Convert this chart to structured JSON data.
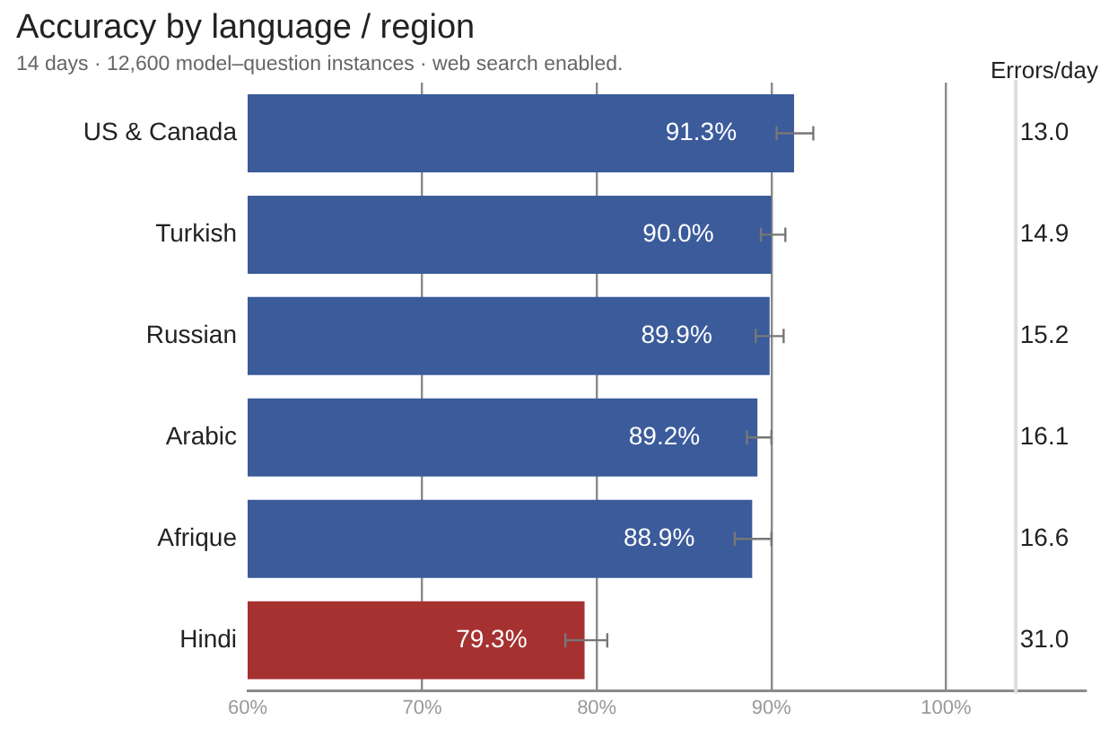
{
  "chart_data": {
    "type": "bar",
    "orientation": "horizontal",
    "title": "Accuracy by language / region",
    "subtitle": "14 days · 12,600 model–question instances · web search enabled.",
    "categories": [
      "US & Canada",
      "Turkish",
      "Russian",
      "Arabic",
      "Afrique",
      "Hindi"
    ],
    "values": [
      91.3,
      90.0,
      89.9,
      89.2,
      88.9,
      79.3
    ],
    "colors": [
      "#3b5b9b",
      "#3b5b9b",
      "#3b5b9b",
      "#3b5b9b",
      "#3b5b9b",
      "#a63131"
    ],
    "value_labels": [
      "91.3%",
      "90.0%",
      "89.9%",
      "89.2%",
      "88.9%",
      "79.3%"
    ],
    "errors": [
      [
        90.3,
        92.4
      ],
      [
        89.4,
        90.8
      ],
      [
        89.1,
        90.7
      ],
      [
        88.6,
        90.0
      ],
      [
        87.9,
        90.0
      ],
      [
        78.2,
        80.6
      ]
    ],
    "xlim": [
      60,
      108
    ],
    "xticks": [
      {
        "value": 60,
        "label": "60%"
      },
      {
        "value": 70,
        "label": "70%"
      },
      {
        "value": 80,
        "label": "80%"
      },
      {
        "value": 90,
        "label": "90%"
      },
      {
        "value": 100,
        "label": "100%"
      }
    ],
    "grid": "x",
    "legend": false,
    "ref_lines": [
      {
        "axis": "x",
        "value": 104,
        "color": "#dddddd"
      }
    ],
    "annotations": [
      "Errors/day",
      "13.0",
      "14.9",
      "15.2",
      "16.1",
      "16.6",
      "31.0"
    ]
  }
}
